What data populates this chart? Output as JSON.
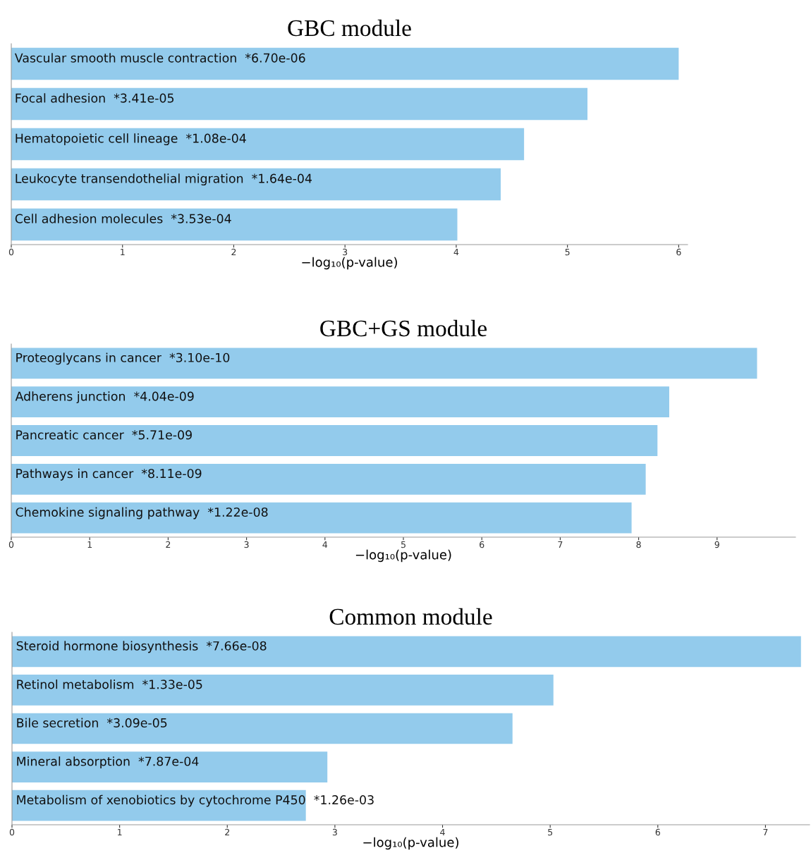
{
  "chart_data": [
    {
      "type": "bar",
      "orientation": "horizontal",
      "title": "GBC module",
      "xlabel": "−log₁₀(p-value)",
      "tick_labels": "x",
      "color": "#93cbec",
      "categories": [
        "Vascular smooth muscle contraction",
        "Focal adhesion",
        "Hematopoietic cell lineage",
        "Leukocyte transendothelial migration",
        "Cell adhesion molecules"
      ],
      "values": [
        6.0,
        5.18,
        4.61,
        4.4,
        4.01
      ],
      "value_labels": [
        "*6.70e-06",
        "*3.41e-05",
        "*1.08e-04",
        "*1.64e-04",
        "*3.53e-04"
      ],
      "xlim": [
        0,
        6.08
      ],
      "xticks": [
        0,
        1,
        2,
        3,
        4,
        5,
        6
      ]
    },
    {
      "type": "bar",
      "orientation": "horizontal",
      "title": "GBC+GS module",
      "xlabel": "−log₁₀(p-value)",
      "tick_labels": "x",
      "color": "#93cbec",
      "categories": [
        "Proteoglycans in cancer",
        "Adherens junction",
        "Pancreatic cancer",
        "Pathways in cancer",
        "Chemokine signaling pathway"
      ],
      "values": [
        9.51,
        8.39,
        8.24,
        8.09,
        7.91
      ],
      "value_labels": [
        "*3.10e-10",
        "*4.04e-09",
        "*5.71e-09",
        "*8.11e-09",
        "*1.22e-08"
      ],
      "xlim": [
        0,
        10
      ],
      "xticks": [
        0,
        1,
        2,
        3,
        4,
        5,
        6,
        7,
        8,
        9
      ]
    },
    {
      "type": "bar",
      "orientation": "horizontal",
      "title": "Common module",
      "xlabel": "−log₁₀(p-value)",
      "tick_labels": "x",
      "color": "#93cbec",
      "categories": [
        "Steroid hormone biosynthesis",
        "Retinol metabolism",
        "Bile secretion",
        "Mineral absorption",
        "Metabolism of xenobiotics by cytochrome P450"
      ],
      "values": [
        7.33,
        5.03,
        4.65,
        2.93,
        2.73
      ],
      "value_labels": [
        "*7.66e-08",
        "*1.33e-05",
        "*3.09e-05",
        "*7.87e-04",
        "*1.26e-03"
      ],
      "xlim": [
        0,
        7.41
      ],
      "xticks": [
        0,
        1,
        2,
        3,
        4,
        5,
        6,
        7
      ]
    }
  ]
}
